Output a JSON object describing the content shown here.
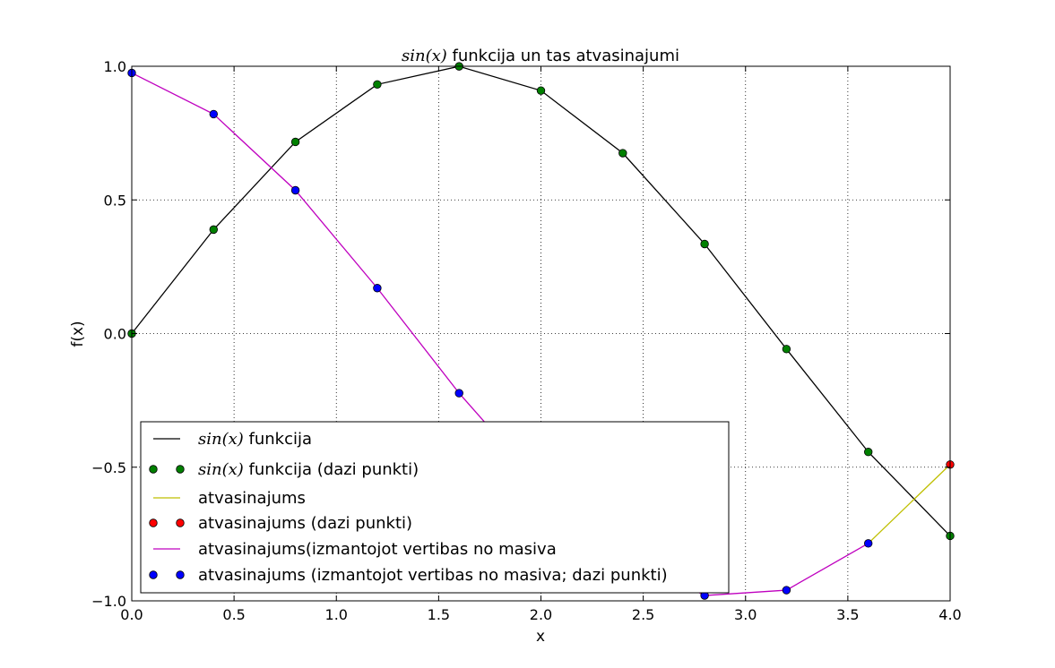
{
  "chart_data": {
    "type": "line",
    "title_math": "sin(x)",
    "title_rest": " funkcija un tas atvasinajumi",
    "xlabel": "x",
    "ylabel": "f(x)",
    "xlim": [
      0.0,
      4.0
    ],
    "ylim": [
      -1.0,
      1.0
    ],
    "xticks": [
      0.0,
      0.5,
      1.0,
      1.5,
      2.0,
      2.5,
      3.0,
      3.5,
      4.0
    ],
    "xtick_labels": [
      "0.0",
      "0.5",
      "1.0",
      "1.5",
      "2.0",
      "2.5",
      "3.0",
      "3.5",
      "4.0"
    ],
    "yticks": [
      -1.0,
      -0.5,
      0.0,
      0.5,
      1.0
    ],
    "ytick_labels": [
      "−1.0",
      "−0.5",
      "0.0",
      "0.5",
      "1.0"
    ],
    "grid": true,
    "legend_position": "lower-left",
    "series": [
      {
        "id": "sin_line",
        "style": "line",
        "color": "#000000",
        "legend_math": "sin(x)",
        "legend_text": " funkcija",
        "x": [
          0,
          0.4,
          0.8,
          1.2,
          1.6,
          2.0,
          2.4,
          2.8,
          3.2,
          3.6,
          4.0
        ],
        "y": [
          0.0,
          0.389,
          0.717,
          0.932,
          0.9996,
          0.909,
          0.675,
          0.335,
          -0.058,
          -0.443,
          -0.757
        ]
      },
      {
        "id": "sin_points",
        "style": "markers",
        "color": "#008000",
        "legend_math": "sin(x)",
        "legend_text": " funkcija (dazi punkti)",
        "x": [
          0,
          0.4,
          0.8,
          1.2,
          1.6,
          2.0,
          2.4,
          2.8,
          3.2,
          3.6,
          4.0
        ],
        "y": [
          0.0,
          0.389,
          0.717,
          0.932,
          0.9996,
          0.909,
          0.675,
          0.335,
          -0.058,
          -0.443,
          -0.757
        ]
      },
      {
        "id": "deriv_line",
        "style": "line",
        "color": "#bfbf00",
        "legend_math": "",
        "legend_text": "atvasinajums",
        "x": [
          3.6,
          4.0
        ],
        "y": [
          -0.785,
          -0.49
        ]
      },
      {
        "id": "deriv_points",
        "style": "markers",
        "color": "#ff0000",
        "legend_math": "",
        "legend_text": "atvasinajums (dazi punkti)",
        "x": [
          4.0
        ],
        "y": [
          -0.49
        ]
      },
      {
        "id": "deriv_arr_line",
        "style": "line",
        "color": "#bf00bf",
        "legend_math": "",
        "legend_text": "atvasinajums(izmantojot vertibas no masiva",
        "x": [
          0,
          0.4,
          0.8,
          1.2,
          1.6,
          2.0,
          2.4,
          2.8,
          3.2,
          3.6
        ],
        "y": [
          0.975,
          0.821,
          0.536,
          0.17,
          -0.223,
          -0.57,
          -0.82,
          -0.98,
          -0.96,
          -0.785
        ]
      },
      {
        "id": "deriv_arr_points",
        "style": "markers",
        "color": "#0000ff",
        "legend_math": "",
        "legend_text": "atvasinajums (izmantojot vertibas no masiva; dazi punkti)",
        "x": [
          0,
          0.4,
          0.8,
          1.2,
          1.6,
          2.8,
          3.2,
          3.6
        ],
        "y": [
          0.975,
          0.821,
          0.536,
          0.17,
          -0.223,
          -0.98,
          -0.96,
          -0.785
        ]
      }
    ]
  }
}
